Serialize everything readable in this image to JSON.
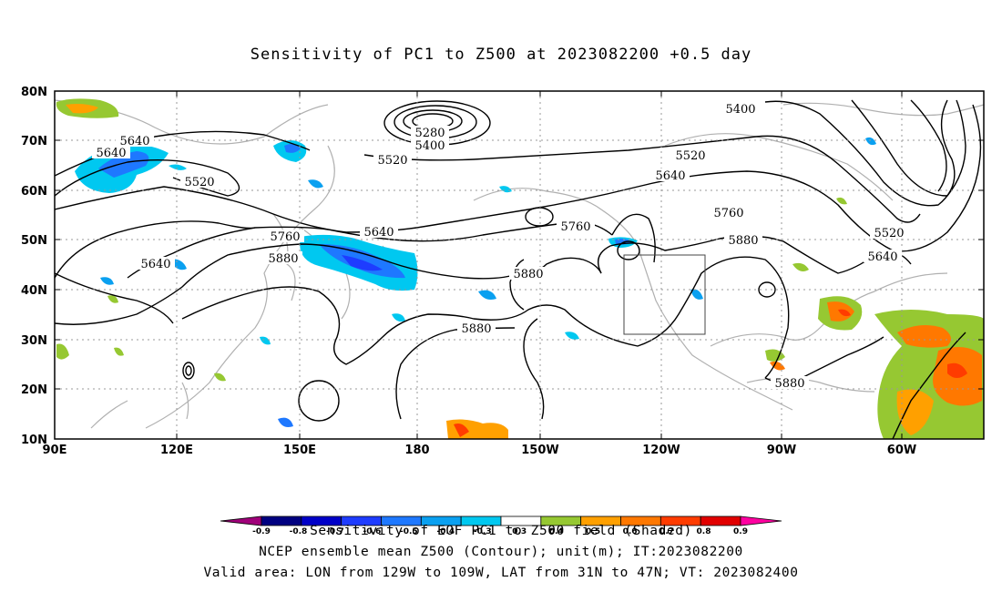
{
  "title": "Sensitivity of PC1 to Z500 at 2023082200 +0.5 day",
  "lat_labels": [
    "80N",
    "70N",
    "60N",
    "50N",
    "40N",
    "30N",
    "20N",
    "10N"
  ],
  "lon_labels": [
    "90E",
    "120E",
    "150E",
    "180",
    "150W",
    "120W",
    "90W",
    "60W"
  ],
  "contour_labels": [
    "5280",
    "5400",
    "5400",
    "5520",
    "5520",
    "5520",
    "5640",
    "5640",
    "5640",
    "5640",
    "5640",
    "5760",
    "5760",
    "5760",
    "5880",
    "5880",
    "5880",
    "5880",
    "5880",
    "5520",
    "5640"
  ],
  "colorbar": {
    "colors": [
      "#a0007a",
      "#000080",
      "#0000c8",
      "#1e3cff",
      "#1e78ff",
      "#0aa0f0",
      "#00c8f0",
      "#ffffff",
      "#96c832",
      "#ffa000",
      "#ff7800",
      "#ff3c00",
      "#e10000",
      "#ff00a0"
    ],
    "labels": [
      "-0.9",
      "-0.8",
      "-0.7",
      "-0.6",
      "-0.5",
      "-0.4",
      "-0.3",
      "0.3",
      "0.4",
      "0.5",
      "0.6",
      "0.7",
      "0.8",
      "0.9"
    ]
  },
  "captions": {
    "line1": "Sensitivity of EOF PC1 to Z500 field (Shaded)",
    "line2": "NCEP ensemble mean Z500 (Contour); unit(m); IT:2023082200",
    "line3": "Valid area: LON from 129W to 109W, LAT from 31N to 47N; VT: 2023082400"
  }
}
